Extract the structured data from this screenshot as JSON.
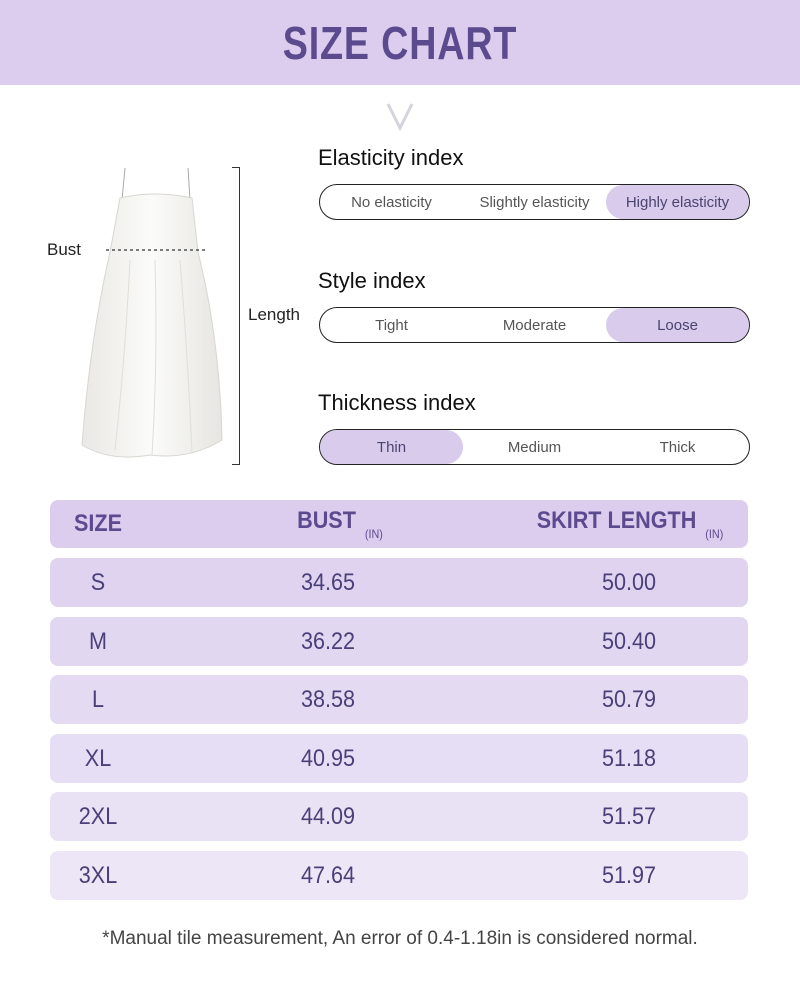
{
  "header": {
    "title": "SIZE CHART"
  },
  "diagram": {
    "bust_label": "Bust",
    "length_label": "Length"
  },
  "indices": [
    {
      "title": "Elasticity index",
      "options": [
        "No elasticity",
        "Slightly elasticity",
        "Highly elasticity"
      ],
      "selected": 2
    },
    {
      "title": "Style index",
      "options": [
        "Tight",
        "Moderate",
        "Loose"
      ],
      "selected": 2
    },
    {
      "title": "Thickness index",
      "options": [
        "Thin",
        "Medium",
        "Thick"
      ],
      "selected": 0
    }
  ],
  "table": {
    "headers": {
      "size": "SIZE",
      "bust": "BUST",
      "bust_unit": "(IN)",
      "length": "SKIRT LENGTH",
      "length_unit": "(IN)"
    },
    "rows": [
      {
        "size": "S",
        "bust": "34.65",
        "length": "50.00"
      },
      {
        "size": "M",
        "bust": "36.22",
        "length": "50.40"
      },
      {
        "size": "L",
        "bust": "38.58",
        "length": "50.79"
      },
      {
        "size": "XL",
        "bust": "40.95",
        "length": "51.18"
      },
      {
        "size": "2XL",
        "bust": "44.09",
        "length": "51.57"
      },
      {
        "size": "3XL",
        "bust": "47.64",
        "length": "51.97"
      }
    ]
  },
  "footnote": "*Manual tile measurement, An error of 0.4-1.18in is considered normal.",
  "colors": {
    "accent": "#dccdef",
    "title": "#5c4a8e",
    "text": "#4a3f78"
  }
}
